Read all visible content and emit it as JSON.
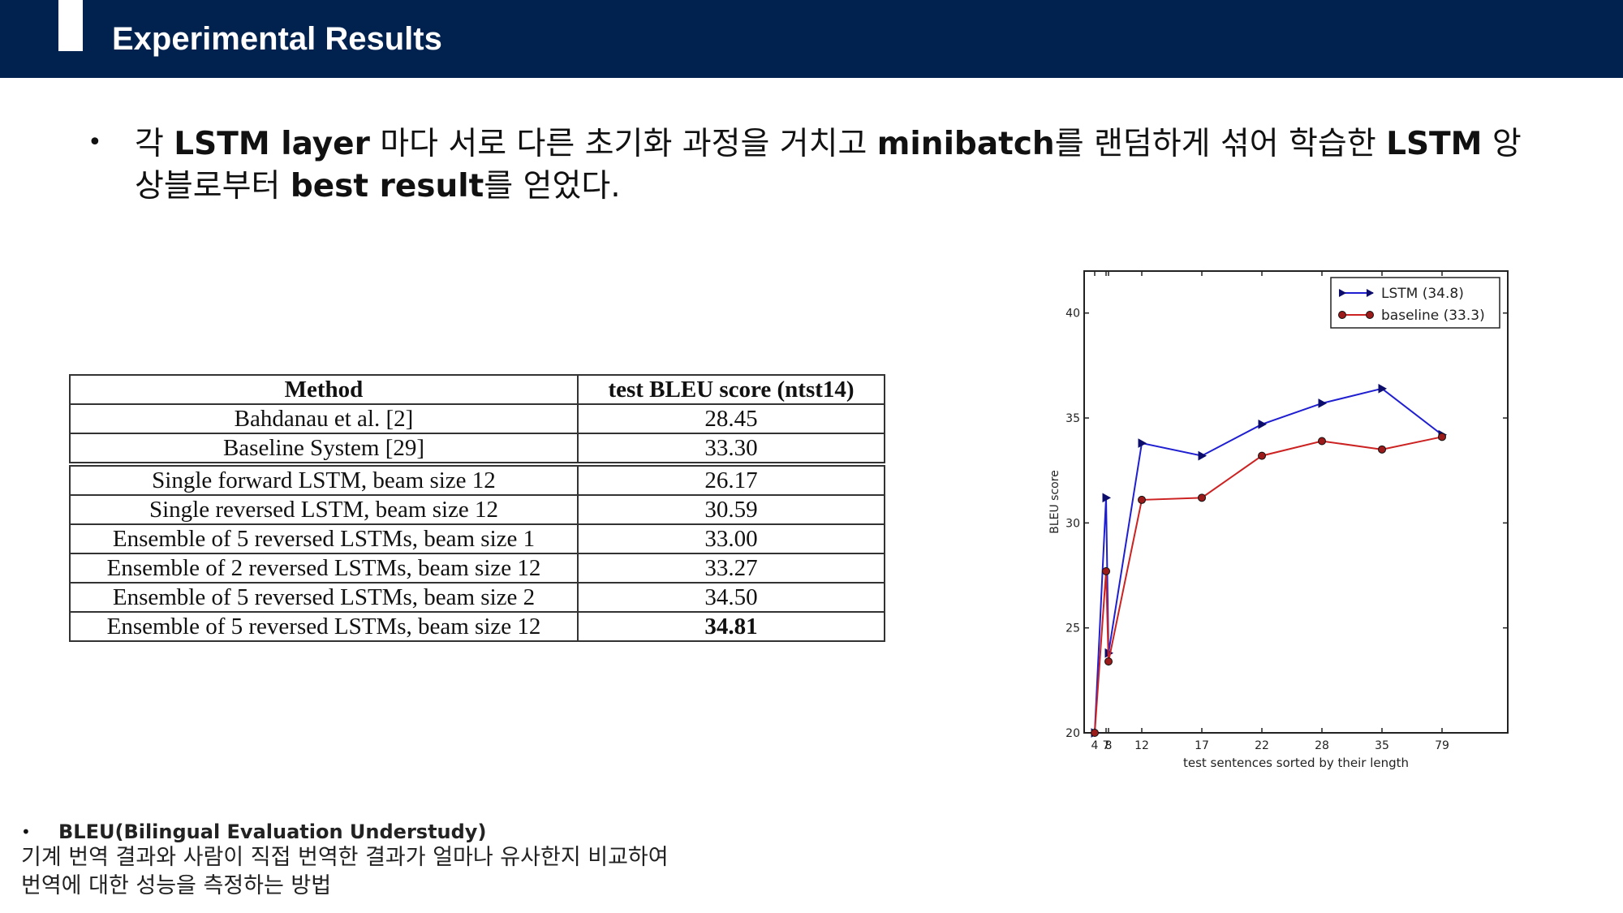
{
  "header": {
    "title": "Experimental Results"
  },
  "main_bullet": {
    "symbol": "•",
    "t1": "각 ",
    "b1": "LSTM layer",
    "t2": " 마다 서로 다른 초기화 과정을 거치고 ",
    "b2": "minibatch",
    "t3": "를 랜덤하게 섞어 학습한 ",
    "b3": "LSTM",
    "t4": " 앙상블로부터 ",
    "b4": "best result",
    "t5": "를 얻었다."
  },
  "results_table": {
    "headers": [
      "Method",
      "test BLEU score (ntst14)"
    ],
    "rows": [
      {
        "method": "Bahdanau et al. [2]",
        "score": "28.45"
      },
      {
        "method": "Baseline System [29]",
        "score": "33.30"
      },
      {
        "method": "Single forward LSTM, beam size 12",
        "score": "26.17"
      },
      {
        "method": "Single reversed LSTM, beam size 12",
        "score": "30.59"
      },
      {
        "method": "Ensemble of 5 reversed LSTMs, beam size 1",
        "score": "33.00"
      },
      {
        "method": "Ensemble of 2 reversed LSTMs, beam size 12",
        "score": "33.27"
      },
      {
        "method": "Ensemble of 5 reversed LSTMs, beam size 2",
        "score": "34.50"
      },
      {
        "method": "Ensemble of 5 reversed LSTMs, beam size 12",
        "score": "34.81"
      }
    ]
  },
  "chart_data": {
    "type": "line",
    "title": "",
    "xlabel": "test sentences sorted by their length",
    "ylabel": "BLEU score",
    "x_ticks": [
      4,
      7,
      8,
      12,
      17,
      22,
      28,
      35,
      79
    ],
    "y_ticks": [
      20,
      25,
      30,
      35,
      40
    ],
    "ylim": [
      20,
      42
    ],
    "grid": false,
    "legend": "top-right",
    "series": [
      {
        "name": "LSTM  (34.8)",
        "color": "#1f1fd1",
        "marker": "triangle-right",
        "points": [
          [
            4,
            20.0
          ],
          [
            7,
            31.2
          ],
          [
            8,
            23.8
          ],
          [
            12,
            33.8
          ],
          [
            17,
            33.2
          ],
          [
            22,
            34.7
          ],
          [
            28,
            35.7
          ],
          [
            35,
            36.4
          ],
          [
            79,
            34.2
          ]
        ]
      },
      {
        "name": "baseline (33.3)",
        "color": "#cc2222",
        "marker": "circle",
        "points": [
          [
            4,
            20.0
          ],
          [
            7,
            27.7
          ],
          [
            8,
            23.4
          ],
          [
            12,
            31.1
          ],
          [
            17,
            31.2
          ],
          [
            22,
            33.2
          ],
          [
            28,
            33.9
          ],
          [
            35,
            33.5
          ],
          [
            79,
            34.1
          ]
        ]
      }
    ]
  },
  "bleu_note": {
    "symbol": "•",
    "title": "BLEU(Bilingual Evaluation Understudy)",
    "line1": "기계 번역 결과와 사람이 직접 번역한 결과가 얼마나 유사한지 비교하여",
    "line2": "번역에 대한 성능을 측정하는 방법"
  }
}
